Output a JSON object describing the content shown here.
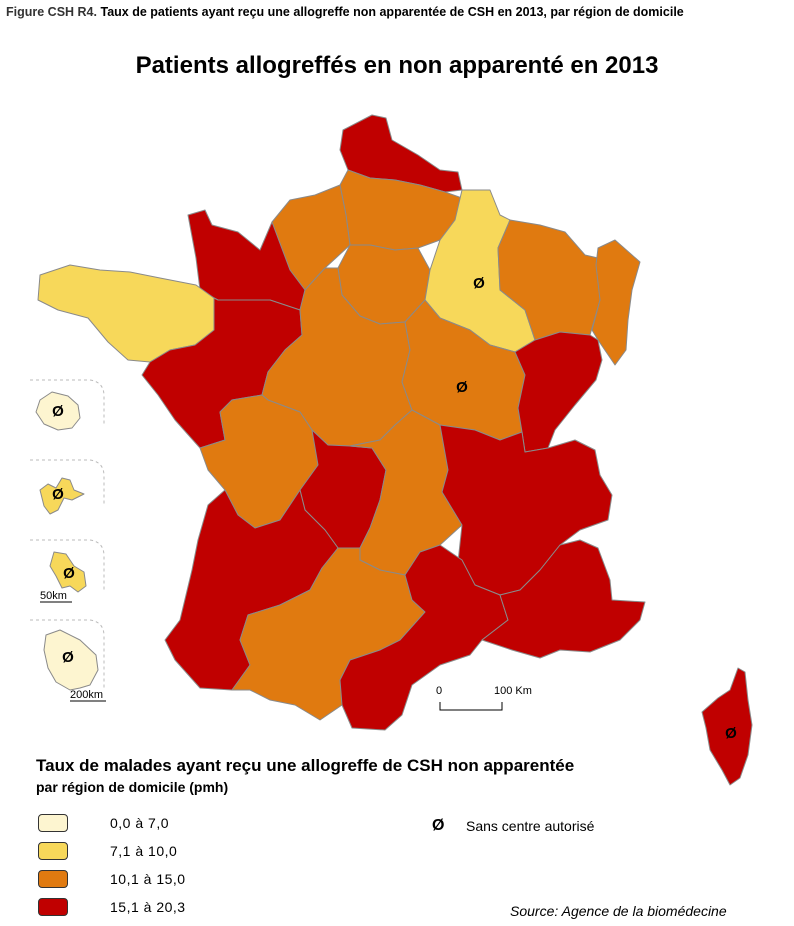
{
  "figure": {
    "label": "Figure CSH R4.",
    "caption": "Taux de patients ayant reçu une allogreffe non apparentée de CSH en 2013, par région de domicile"
  },
  "map_title": "Patients allogreffés en non apparenté en 2013",
  "legend": {
    "title": "Taux de malades ayant reçu une allogreffe de CSH non apparentée",
    "subtitle": "par région de domicile (pmh)",
    "classes": [
      {
        "label": "0,0 à 7,0",
        "color": "#fdf5d0"
      },
      {
        "label": "7,1 à 10,0",
        "color": "#f7d85a"
      },
      {
        "label": "10,1 à 15,0",
        "color": "#e07a10"
      },
      {
        "label": "15,1 à 20,3",
        "color": "#c00000"
      }
    ],
    "no_centre_symbol": "Ø",
    "no_centre_label": "Sans centre autorisé"
  },
  "scale": {
    "zero": "0",
    "main_label": "100 Km",
    "inset_small": "50km",
    "inset_large": "200km"
  },
  "source": "Source: Agence de la biomédecine",
  "regions": [
    {
      "name": "Nord-Pas-de-Calais",
      "class": 3
    },
    {
      "name": "Picardie",
      "class": 2
    },
    {
      "name": "Haute-Normandie",
      "class": 2
    },
    {
      "name": "Basse-Normandie",
      "class": 3
    },
    {
      "name": "Bretagne",
      "class": 1
    },
    {
      "name": "Île-de-France",
      "class": 2
    },
    {
      "name": "Champagne-Ardenne",
      "class": 1,
      "no_centre": true
    },
    {
      "name": "Lorraine",
      "class": 2
    },
    {
      "name": "Alsace",
      "class": 2
    },
    {
      "name": "Pays de la Loire",
      "class": 3
    },
    {
      "name": "Centre",
      "class": 2
    },
    {
      "name": "Bourgogne",
      "class": 2,
      "no_centre": true
    },
    {
      "name": "Franche-Comté",
      "class": 3
    },
    {
      "name": "Poitou-Charentes",
      "class": 2
    },
    {
      "name": "Limousin",
      "class": 3
    },
    {
      "name": "Auvergne",
      "class": 2
    },
    {
      "name": "Rhône-Alpes",
      "class": 3
    },
    {
      "name": "Aquitaine",
      "class": 3
    },
    {
      "name": "Midi-Pyrénées",
      "class": 2
    },
    {
      "name": "Languedoc-Roussillon",
      "class": 3
    },
    {
      "name": "Provence-Alpes-Côte d'Azur",
      "class": 3
    },
    {
      "name": "Corse",
      "class": 3,
      "no_centre": true
    },
    {
      "name": "Réunion",
      "class": 0,
      "no_centre": true
    },
    {
      "name": "Guadeloupe",
      "class": 1,
      "no_centre": true
    },
    {
      "name": "Martinique",
      "class": 1,
      "no_centre": true
    },
    {
      "name": "Guyane",
      "class": 0,
      "no_centre": true
    }
  ]
}
